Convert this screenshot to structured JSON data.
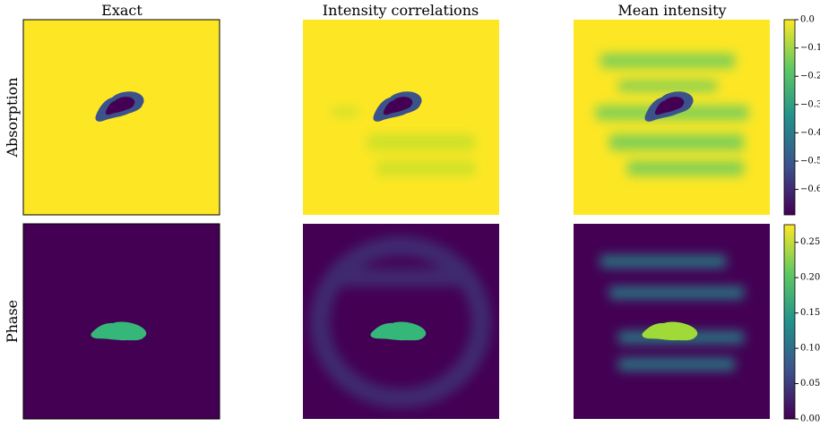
{
  "columns": [
    "Exact",
    "Intensity correlations",
    "Mean intensity"
  ],
  "rows": [
    "Absorption",
    "Phase"
  ],
  "colorbars": [
    {
      "lim": [
        -0.69,
        0.0
      ],
      "ticks": [
        {
          "value": 0.0,
          "label": "0.0"
        },
        {
          "value": -0.1,
          "label": "−0.1"
        },
        {
          "value": -0.2,
          "label": "−0.2"
        },
        {
          "value": -0.3,
          "label": "−0.3"
        },
        {
          "value": -0.4,
          "label": "−0.4"
        },
        {
          "value": -0.5,
          "label": "−0.5"
        },
        {
          "value": -0.6,
          "label": "−0.6"
        }
      ]
    },
    {
      "lim": [
        0.0,
        0.275
      ],
      "ticks": [
        {
          "value": 0.0,
          "label": "0.00"
        },
        {
          "value": 0.05,
          "label": "0.05"
        },
        {
          "value": 0.1,
          "label": "0.10"
        },
        {
          "value": 0.15,
          "label": "0.15"
        },
        {
          "value": 0.2,
          "label": "0.20"
        },
        {
          "value": 0.25,
          "label": "0.25"
        }
      ]
    }
  ]
}
